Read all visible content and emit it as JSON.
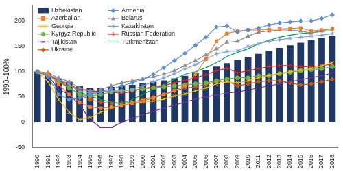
{
  "chart_data": {
    "type": "bar",
    "y_label": "1990=100%",
    "categories": [
      "1990",
      "1991",
      "1992",
      "1993",
      "1994",
      "1995",
      "1996",
      "1997",
      "1998",
      "1999",
      "2000",
      "2001",
      "2002",
      "2003",
      "2004",
      "2005",
      "2006",
      "2007",
      "2008",
      "2009",
      "2010",
      "2011",
      "2012",
      "2013",
      "2014",
      "2015",
      "2016",
      "2017",
      "2018"
    ],
    "series": [
      {
        "name": "Uzbekistan",
        "type": "bar",
        "color": "#1f3864",
        "values": [
          100,
          97,
          86,
          80,
          72,
          68,
          68,
          70,
          72,
          74,
          77,
          80,
          83,
          87,
          92,
          97,
          103,
          110,
          117,
          123,
          129,
          135,
          141,
          147,
          152,
          157,
          162,
          166,
          170
        ]
      },
      {
        "name": "Armenia",
        "type": "line",
        "color": "#5b8fd0",
        "marker": "diamond",
        "values": [
          100,
          90,
          55,
          45,
          48,
          55,
          60,
          66,
          72,
          78,
          85,
          95,
          108,
          122,
          136,
          152,
          168,
          188,
          190,
          178,
          182,
          186,
          192,
          196,
          198,
          200,
          200,
          205,
          212
        ]
      },
      {
        "name": "Azerbaijan",
        "type": "line",
        "color": "#ed7d31",
        "marker": "square",
        "values": [
          100,
          96,
          75,
          55,
          40,
          30,
          28,
          30,
          33,
          38,
          42,
          48,
          55,
          63,
          72,
          95,
          125,
          160,
          175,
          180,
          182,
          182,
          183,
          184,
          185,
          186,
          180,
          182,
          184
        ]
      },
      {
        "name": "Belarus",
        "type": "line",
        "color": "#8c8c8c",
        "marker": "triangle",
        "values": [
          100,
          98,
          88,
          80,
          68,
          62,
          65,
          72,
          78,
          82,
          86,
          90,
          95,
          102,
          112,
          122,
          133,
          145,
          158,
          160,
          170,
          178,
          180,
          182,
          182,
          180,
          176,
          180,
          185
        ]
      },
      {
        "name": "Georgia",
        "type": "line",
        "color": "#ffc000",
        "marker": "x",
        "values": [
          100,
          80,
          45,
          20,
          5,
          10,
          20,
          28,
          34,
          38,
          40,
          42,
          46,
          52,
          56,
          62,
          68,
          76,
          80,
          78,
          82,
          88,
          93,
          97,
          100,
          103,
          106,
          112,
          118
        ]
      },
      {
        "name": "Kazakhstan",
        "type": "line",
        "color": "#7f9fd4",
        "marker": "star",
        "values": [
          100,
          95,
          85,
          75,
          62,
          58,
          60,
          62,
          62,
          65,
          72,
          80,
          88,
          96,
          105,
          114,
          125,
          135,
          140,
          141,
          150,
          155,
          160,
          163,
          166,
          168,
          170,
          172,
          175
        ]
      },
      {
        "name": "Kyrgyz Republic",
        "type": "line",
        "color": "#70ad47",
        "marker": "circle",
        "values": [
          100,
          92,
          80,
          68,
          55,
          52,
          55,
          60,
          62,
          64,
          66,
          68,
          70,
          72,
          74,
          76,
          78,
          82,
          86,
          88,
          88,
          92,
          92,
          96,
          99,
          102,
          104,
          106,
          110
        ]
      },
      {
        "name": "Russian Federation",
        "type": "line",
        "color": "#e02020",
        "marker": "plus",
        "values": [
          100,
          95,
          82,
          75,
          65,
          62,
          60,
          60,
          57,
          61,
          67,
          70,
          73,
          78,
          83,
          88,
          94,
          102,
          107,
          98,
          102,
          106,
          110,
          112,
          112,
          110,
          110,
          112,
          115
        ]
      },
      {
        "name": "Tajikistan",
        "type": "line",
        "color": "#7030a0",
        "marker": "dash",
        "values": [
          100,
          92,
          65,
          55,
          35,
          5,
          -10,
          -10,
          0,
          8,
          15,
          22,
          28,
          34,
          40,
          46,
          50,
          54,
          58,
          60,
          64,
          68,
          72,
          76,
          80,
          84,
          88,
          92,
          98
        ]
      },
      {
        "name": "Turkmenistan",
        "type": "line",
        "color": "#00a050",
        "marker": "none",
        "values": [
          100,
          95,
          85,
          75,
          60,
          52,
          45,
          40,
          38,
          45,
          55,
          65,
          75,
          85,
          95,
          100,
          108,
          118,
          130,
          138,
          145,
          155,
          162,
          168,
          172,
          175,
          177,
          179,
          181
        ]
      },
      {
        "name": "Ukraine",
        "type": "line",
        "color": "#c55a11",
        "marker": "diamond",
        "values": [
          100,
          92,
          82,
          70,
          55,
          45,
          40,
          38,
          38,
          40,
          45,
          50,
          55,
          62,
          68,
          70,
          75,
          80,
          82,
          72,
          76,
          80,
          82,
          82,
          78,
          74,
          76,
          80,
          85
        ]
      }
    ],
    "ylim": [
      -50,
      230
    ],
    "yticks": [
      -50,
      0,
      50,
      100,
      150,
      200
    ],
    "grid": false,
    "legend": "upper left"
  }
}
